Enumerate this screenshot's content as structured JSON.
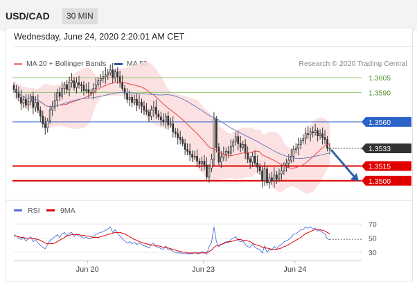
{
  "header": {
    "symbol": "USD/CAD",
    "timeframe": "30 MIN"
  },
  "timestamp": "Wednesday, June 24, 2020 2:20:01 AM CET",
  "legend": {
    "ma20": {
      "label": "MA 20 + Bollinger Bands",
      "color": "#ef8a8a"
    },
    "ma50": {
      "label": "MA 50",
      "color": "#2f5597"
    },
    "rsi": {
      "label": "RSI",
      "color": "#4a6fd6"
    },
    "rsi_ma": {
      "label": "9MA",
      "color": "#e00000"
    }
  },
  "credit": "Research © 2020 Trading Central",
  "colors": {
    "candle": "#333333",
    "band_fill": "#fadcdc",
    "ma20": "#e64646",
    "ma50": "#6e7fb8",
    "level_green": "#8cc46a",
    "level_blue": "#2a62c8",
    "level_red": "#e00000",
    "current": "#333333",
    "arrow": "#2f5fa8"
  },
  "chart_data": [
    {
      "type": "candlestick",
      "x": {
        "tick_labels": [
          "Jun 20",
          "Jun 23",
          "Jun 24"
        ],
        "tick_positions": [
          0.2,
          0.6,
          0.89
        ]
      },
      "ylim": [
        1.3485,
        1.3615
      ],
      "levels": [
        {
          "value": 1.3605,
          "label": "1.3605",
          "style": "resistance-line",
          "color": "#8cc46a"
        },
        {
          "value": 1.359,
          "label": "1.3590",
          "style": "resistance-line",
          "color": "#8cc46a"
        },
        {
          "value": 1.356,
          "label": "1.3560",
          "style": "pivot",
          "color": "#2a62c8"
        },
        {
          "value": 1.3533,
          "label": "1.3533",
          "style": "current-price",
          "color": "#333333"
        },
        {
          "value": 1.3515,
          "label": "1.3515",
          "style": "support",
          "color": "#e00000"
        },
        {
          "value": 1.35,
          "label": "1.3500",
          "style": "support",
          "color": "#e00000"
        }
      ],
      "close_series": [
        1.3593,
        1.359,
        1.3585,
        1.3579,
        1.3583,
        1.3577,
        1.3581,
        1.3586,
        1.3575,
        1.358,
        1.3572,
        1.3566,
        1.3558,
        1.3554,
        1.3561,
        1.3572,
        1.3575,
        1.3582,
        1.359,
        1.3586,
        1.3594,
        1.3598,
        1.3593,
        1.36,
        1.3602,
        1.3595,
        1.36,
        1.3598,
        1.3597,
        1.3592,
        1.3593,
        1.359,
        1.359,
        1.3594,
        1.3598,
        1.3602,
        1.3604,
        1.3606,
        1.3608,
        1.361,
        1.3613,
        1.3605,
        1.3611,
        1.3606,
        1.36,
        1.3594,
        1.3589,
        1.3583,
        1.3585,
        1.358,
        1.3583,
        1.3577,
        1.358,
        1.3576,
        1.3572,
        1.357,
        1.3566,
        1.3572,
        1.3575,
        1.3568,
        1.3565,
        1.3562,
        1.356,
        1.3566,
        1.3557,
        1.3558,
        1.355,
        1.3548,
        1.3544,
        1.3542,
        1.3538,
        1.3532,
        1.353,
        1.3527,
        1.3524,
        1.3525,
        1.352,
        1.3517,
        1.352,
        1.3516,
        1.3504,
        1.3513,
        1.3522,
        1.3563,
        1.3534,
        1.3519,
        1.3524,
        1.3527,
        1.353,
        1.3528,
        1.3535,
        1.354,
        1.3545,
        1.3538,
        1.3534,
        1.3537,
        1.3528,
        1.3522,
        1.3519,
        1.3525,
        1.3518,
        1.3514,
        1.351,
        1.35,
        1.3512,
        1.3498,
        1.3503,
        1.35,
        1.3506,
        1.3502,
        1.3507,
        1.351,
        1.3516,
        1.3518,
        1.3521,
        1.3525,
        1.3532,
        1.3533,
        1.3537,
        1.3541,
        1.3543,
        1.3548,
        1.3547,
        1.355,
        1.3549,
        1.3551,
        1.3546,
        1.3548,
        1.3544,
        1.3542,
        1.3533,
        1.3533
      ],
      "forecast_arrow": {
        "from": 1.3533,
        "to": 1.35
      }
    },
    {
      "type": "line",
      "title": "RSI",
      "ylim": [
        22,
        78
      ],
      "y_ticks": [
        70,
        50,
        30
      ],
      "series": [
        {
          "name": "RSI",
          "values": [
            55,
            53,
            50,
            48,
            51,
            46,
            49,
            52,
            45,
            48,
            43,
            40,
            37,
            35,
            41,
            47,
            49,
            52,
            55,
            51,
            56,
            58,
            53,
            57,
            58,
            52,
            55,
            53,
            52,
            50,
            51,
            49,
            49,
            52,
            55,
            57,
            58,
            59,
            61,
            63,
            66,
            58,
            62,
            57,
            53,
            49,
            46,
            43,
            45,
            42,
            44,
            41,
            43,
            41,
            39,
            38,
            36,
            41,
            43,
            38,
            37,
            35,
            34,
            39,
            33,
            34,
            31,
            30,
            29,
            29,
            28,
            28,
            28,
            28,
            28,
            30,
            28,
            28,
            31,
            30,
            27,
            38,
            44,
            66,
            45,
            38,
            41,
            43,
            45,
            43,
            48,
            50,
            52,
            47,
            45,
            46,
            41,
            38,
            37,
            42,
            37,
            35,
            34,
            29,
            39,
            30,
            34,
            33,
            38,
            35,
            39,
            41,
            45,
            46,
            48,
            51,
            56,
            56,
            59,
            62,
            62,
            66,
            64,
            66,
            63,
            64,
            60,
            61,
            58,
            56,
            49,
            48
          ]
        },
        {
          "name": "9MA",
          "values": [
            53,
            53,
            52,
            51,
            51,
            50,
            50,
            50,
            49,
            49,
            48,
            47,
            45,
            43,
            42,
            42,
            42,
            43,
            45,
            47,
            49,
            51,
            53,
            54,
            55,
            55,
            55,
            55,
            54,
            54,
            53,
            53,
            52,
            51,
            51,
            51,
            52,
            53,
            54,
            55,
            56,
            57,
            58,
            58,
            58,
            57,
            56,
            54,
            52,
            50,
            48,
            47,
            45,
            44,
            43,
            42,
            41,
            40,
            40,
            39,
            39,
            38,
            37,
            37,
            36,
            35,
            34,
            33,
            32,
            31,
            30,
            30,
            29,
            29,
            29,
            29,
            29,
            29,
            29,
            29,
            30,
            31,
            33,
            37,
            39,
            40,
            41,
            42,
            44,
            45,
            45,
            46,
            47,
            48,
            48,
            47,
            47,
            46,
            45,
            43,
            41,
            40,
            39,
            37,
            36,
            36,
            35,
            34,
            34,
            34,
            35,
            36,
            38,
            39,
            41,
            43,
            45,
            47,
            49,
            51,
            54,
            56,
            58,
            59,
            61,
            62,
            62,
            62,
            61,
            60,
            58,
            56
          ]
        }
      ]
    }
  ]
}
